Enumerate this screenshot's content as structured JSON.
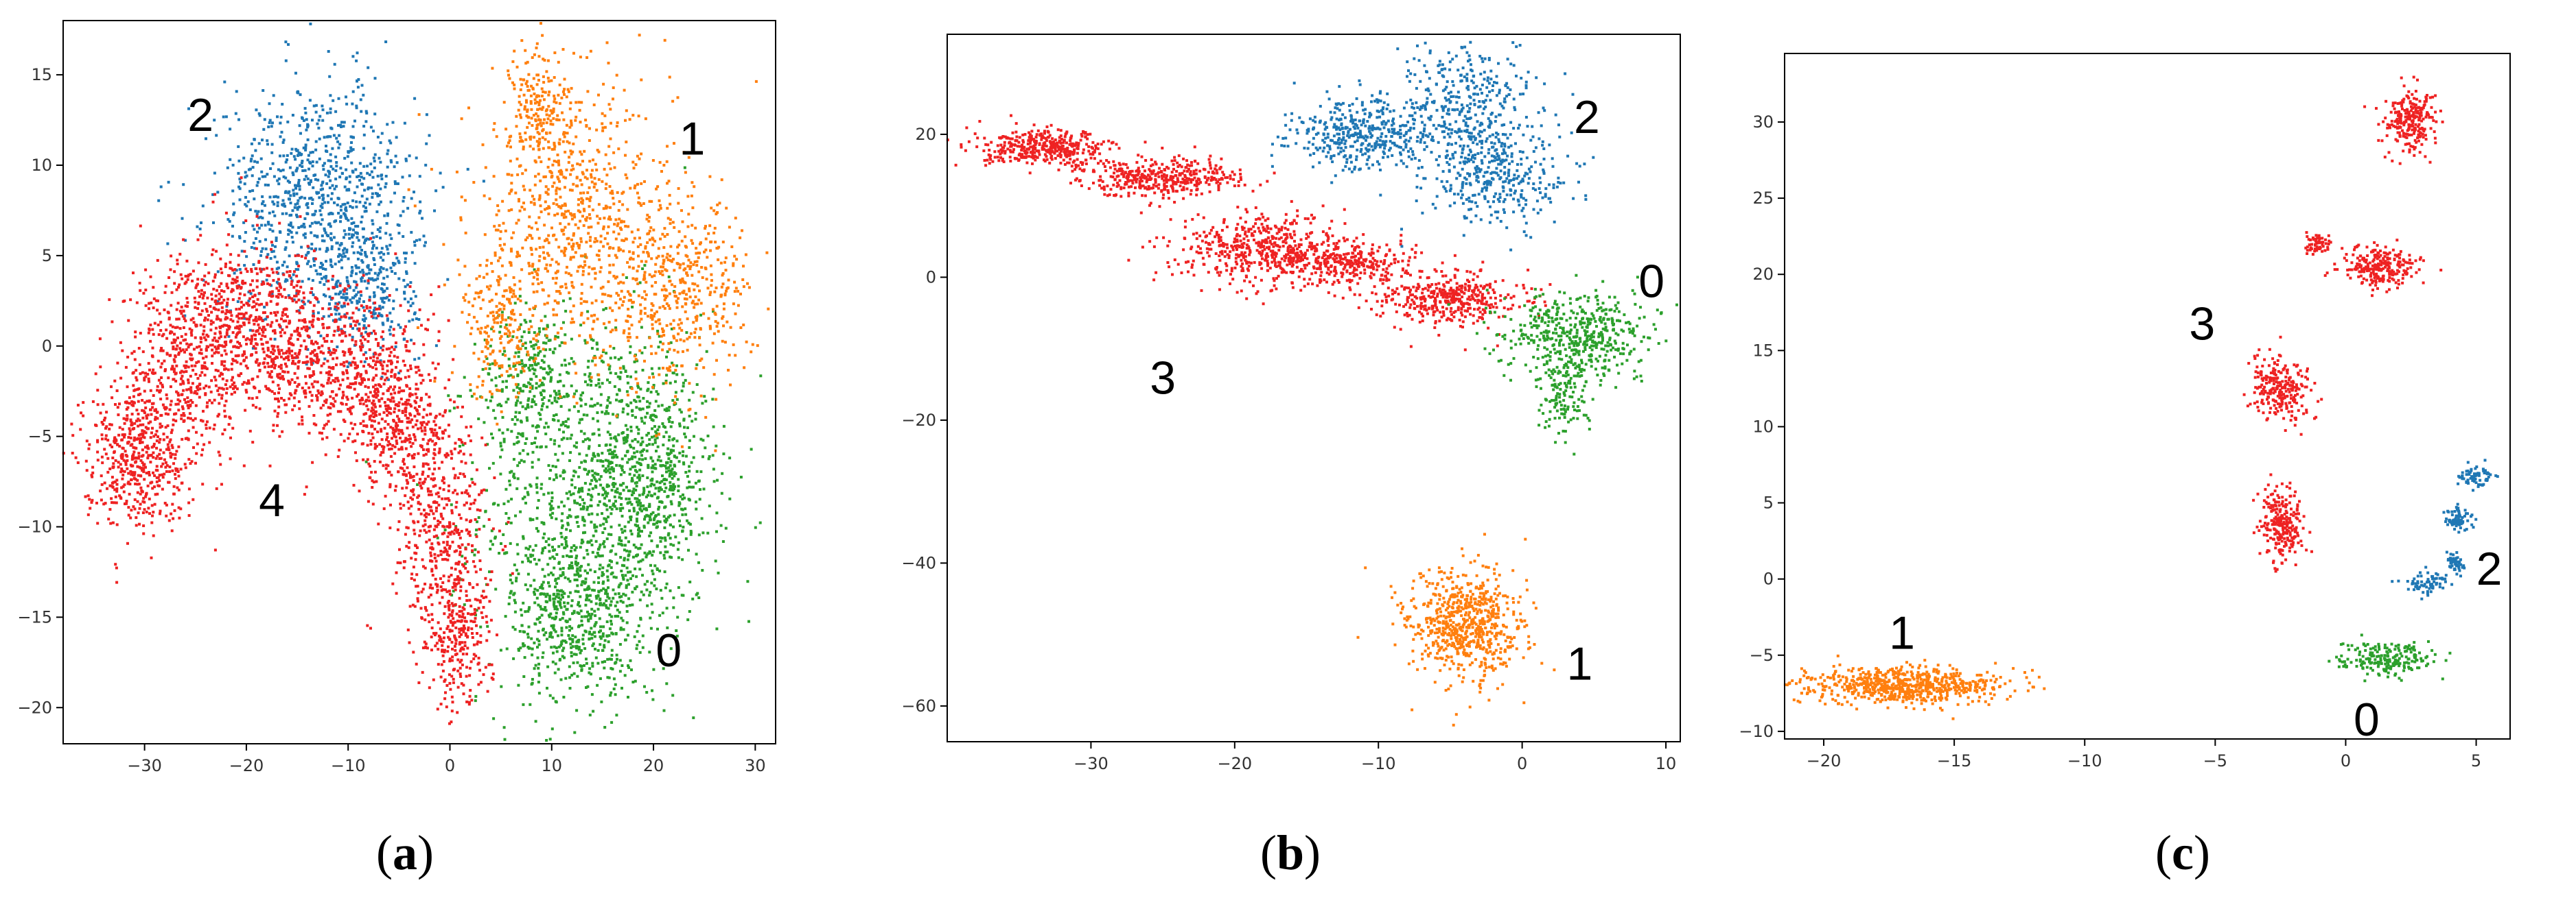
{
  "chart_data": [
    {
      "type": "scatter",
      "panel_label": {
        "open": "(",
        "letter": "a",
        "close": ")"
      },
      "xlim": [
        -38,
        32
      ],
      "ylim": [
        -22,
        18
      ],
      "x_ticks": [
        -30,
        -20,
        -10,
        0,
        10,
        20,
        30
      ],
      "y_ticks": [
        -20,
        -15,
        -10,
        -5,
        0,
        5,
        10,
        15
      ],
      "grid": false,
      "series": [
        {
          "name": "0",
          "color": "#2ca02c",
          "clusters": [
            {
              "cx": 14,
              "cy": -9,
              "sx": 5.5,
              "sy": 5.5,
              "n": 1100
            },
            {
              "cx": 20,
              "cy": -7,
              "sx": 3,
              "sy": 3,
              "n": 500
            },
            {
              "cx": 12,
              "cy": -15,
              "sx": 3,
              "sy": 2.2,
              "n": 400
            },
            {
              "cx": 8,
              "cy": -2,
              "sx": 2.5,
              "sy": 2,
              "n": 250
            }
          ]
        },
        {
          "name": "1",
          "color": "#ff7f0e",
          "clusters": [
            {
              "cx": 12,
              "cy": 7,
              "sx": 5,
              "sy": 3.5,
              "n": 700
            },
            {
              "cx": 22,
              "cy": 3,
              "sx": 4,
              "sy": 2.5,
              "n": 500
            },
            {
              "cx": 9,
              "cy": 13,
              "sx": 1.5,
              "sy": 2,
              "n": 200
            },
            {
              "cx": 5,
              "cy": 1,
              "sx": 1.8,
              "sy": 2,
              "n": 200
            }
          ]
        },
        {
          "name": "2",
          "color": "#1f77b4",
          "clusters": [
            {
              "cx": -13,
              "cy": 8,
              "sx": 5,
              "sy": 3.2,
              "n": 900
            },
            {
              "cx": -8,
              "cy": 3,
              "sx": 2.5,
              "sy": 2,
              "n": 250
            }
          ]
        },
        {
          "name": "4",
          "color": "#ee2222",
          "clusters": [
            {
              "cx": -31,
              "cy": -6,
              "sx": 2.5,
              "sy": 2,
              "n": 500
            },
            {
              "cx": -26,
              "cy": -1,
              "sx": 3,
              "sy": 3,
              "n": 500
            },
            {
              "cx": -19,
              "cy": 1,
              "sx": 3.5,
              "sy": 2.2,
              "n": 600
            },
            {
              "cx": -11,
              "cy": -1,
              "sx": 3.5,
              "sy": 2.2,
              "n": 500
            },
            {
              "cx": -5,
              "cy": -4,
              "sx": 2.5,
              "sy": 2.2,
              "n": 400
            },
            {
              "cx": -1,
              "cy": -10,
              "sx": 2.2,
              "sy": 3.5,
              "n": 450
            },
            {
              "cx": 1,
              "cy": -16,
              "sx": 1.6,
              "sy": 2,
              "n": 250
            }
          ]
        }
      ],
      "annotations": [
        {
          "text": "2",
          "x": -24.5,
          "y": 12.8
        },
        {
          "text": "1",
          "x": 23.8,
          "y": 11.5
        },
        {
          "text": "4",
          "x": -17.5,
          "y": -8.5
        },
        {
          "text": "0",
          "x": 21.5,
          "y": -16.8
        }
      ]
    },
    {
      "type": "scatter",
      "panel_label": {
        "open": "(",
        "letter": "b",
        "close": ")"
      },
      "xlim": [
        -40,
        11
      ],
      "ylim": [
        -65,
        34
      ],
      "x_ticks": [
        -30,
        -20,
        -10,
        0,
        10
      ],
      "y_ticks": [
        -60,
        -40,
        -20,
        0,
        20
      ],
      "grid": false,
      "series": [
        {
          "name": "3",
          "color": "#ee2222",
          "clusters": [
            {
              "cx": -33,
              "cy": 18,
              "sx": 2.2,
              "sy": 1.2,
              "n": 400
            },
            {
              "cx": -25,
              "cy": 14,
              "sx": 2.8,
              "sy": 1.3,
              "n": 400
            },
            {
              "cx": -18,
              "cy": 4,
              "sx": 3,
              "sy": 2.5,
              "n": 500
            },
            {
              "cx": -12,
              "cy": 2,
              "sx": 2.5,
              "sy": 1.5,
              "n": 300
            },
            {
              "cx": -5,
              "cy": -3,
              "sx": 2.5,
              "sy": 1.8,
              "n": 400
            }
          ]
        },
        {
          "name": "2",
          "color": "#1f77b4",
          "clusters": [
            {
              "cx": -11,
              "cy": 20,
              "sx": 2.5,
              "sy": 2.5,
              "n": 400
            },
            {
              "cx": -4,
              "cy": 24,
              "sx": 2.5,
              "sy": 4,
              "n": 350
            },
            {
              "cx": -2,
              "cy": 14,
              "sx": 2.5,
              "sy": 3.5,
              "n": 350
            }
          ]
        },
        {
          "name": "0",
          "color": "#2ca02c",
          "clusters": [
            {
              "cx": 4,
              "cy": -8,
              "sx": 2.5,
              "sy": 3,
              "n": 500
            },
            {
              "cx": 3,
              "cy": -17,
              "sx": 0.8,
              "sy": 2.5,
              "n": 120
            }
          ]
        },
        {
          "name": "1",
          "color": "#ff7f0e",
          "clusters": [
            {
              "cx": -4,
              "cy": -49,
              "sx": 2,
              "sy": 4,
              "n": 700
            }
          ]
        }
      ],
      "annotations": [
        {
          "text": "2",
          "x": 4.5,
          "y": 22.5
        },
        {
          "text": "0",
          "x": 9,
          "y": -0.5
        },
        {
          "text": "3",
          "x": -25,
          "y": -14
        },
        {
          "text": "1",
          "x": 4,
          "y": -54
        }
      ]
    },
    {
      "type": "scatter",
      "panel_label": {
        "open": "(",
        "letter": "c",
        "close": ")"
      },
      "xlim": [
        -21.5,
        6.3
      ],
      "ylim": [
        -10.5,
        34.5
      ],
      "x_ticks": [
        -20,
        -15,
        -10,
        -5,
        0,
        5
      ],
      "y_ticks": [
        -10,
        -5,
        0,
        5,
        10,
        15,
        20,
        25,
        30
      ],
      "grid": false,
      "series": [
        {
          "name": "3",
          "color": "#ee2222",
          "clusters": [
            {
              "cx": 2.5,
              "cy": 30,
              "sx": 0.5,
              "sy": 1,
              "n": 250
            },
            {
              "cx": 1.3,
              "cy": 20.5,
              "sx": 0.7,
              "sy": 0.7,
              "n": 250
            },
            {
              "cx": -1.1,
              "cy": 22,
              "sx": 0.3,
              "sy": 0.4,
              "n": 60
            },
            {
              "cx": -2.5,
              "cy": 12.5,
              "sx": 0.6,
              "sy": 1,
              "n": 250
            },
            {
              "cx": -2.4,
              "cy": 3.5,
              "sx": 0.4,
              "sy": 1.2,
              "n": 250
            }
          ]
        },
        {
          "name": "2",
          "color": "#1f77b4",
          "clusters": [
            {
              "cx": 5,
              "cy": 6.8,
              "sx": 0.35,
              "sy": 0.35,
              "n": 70
            },
            {
              "cx": 4.3,
              "cy": 4,
              "sx": 0.3,
              "sy": 0.4,
              "n": 70
            },
            {
              "cx": 4.2,
              "cy": 1,
              "sx": 0.2,
              "sy": 0.3,
              "n": 50
            },
            {
              "cx": 3.2,
              "cy": -0.3,
              "sx": 0.4,
              "sy": 0.35,
              "n": 70
            }
          ]
        },
        {
          "name": "0",
          "color": "#2ca02c",
          "clusters": [
            {
              "cx": 1.5,
              "cy": -5.2,
              "sx": 0.9,
              "sy": 0.5,
              "n": 200
            }
          ]
        },
        {
          "name": "1",
          "color": "#ff7f0e",
          "clusters": [
            {
              "cx": -17,
              "cy": -7,
              "sx": 1.9,
              "sy": 0.6,
              "n": 700
            }
          ]
        }
      ],
      "annotations": [
        {
          "text": "3",
          "x": -5.5,
          "y": 16.8
        },
        {
          "text": "1",
          "x": -17,
          "y": -3.5
        },
        {
          "text": "2",
          "x": 5.5,
          "y": 0.7
        },
        {
          "text": "0",
          "x": 0.8,
          "y": -9.2
        }
      ]
    }
  ]
}
